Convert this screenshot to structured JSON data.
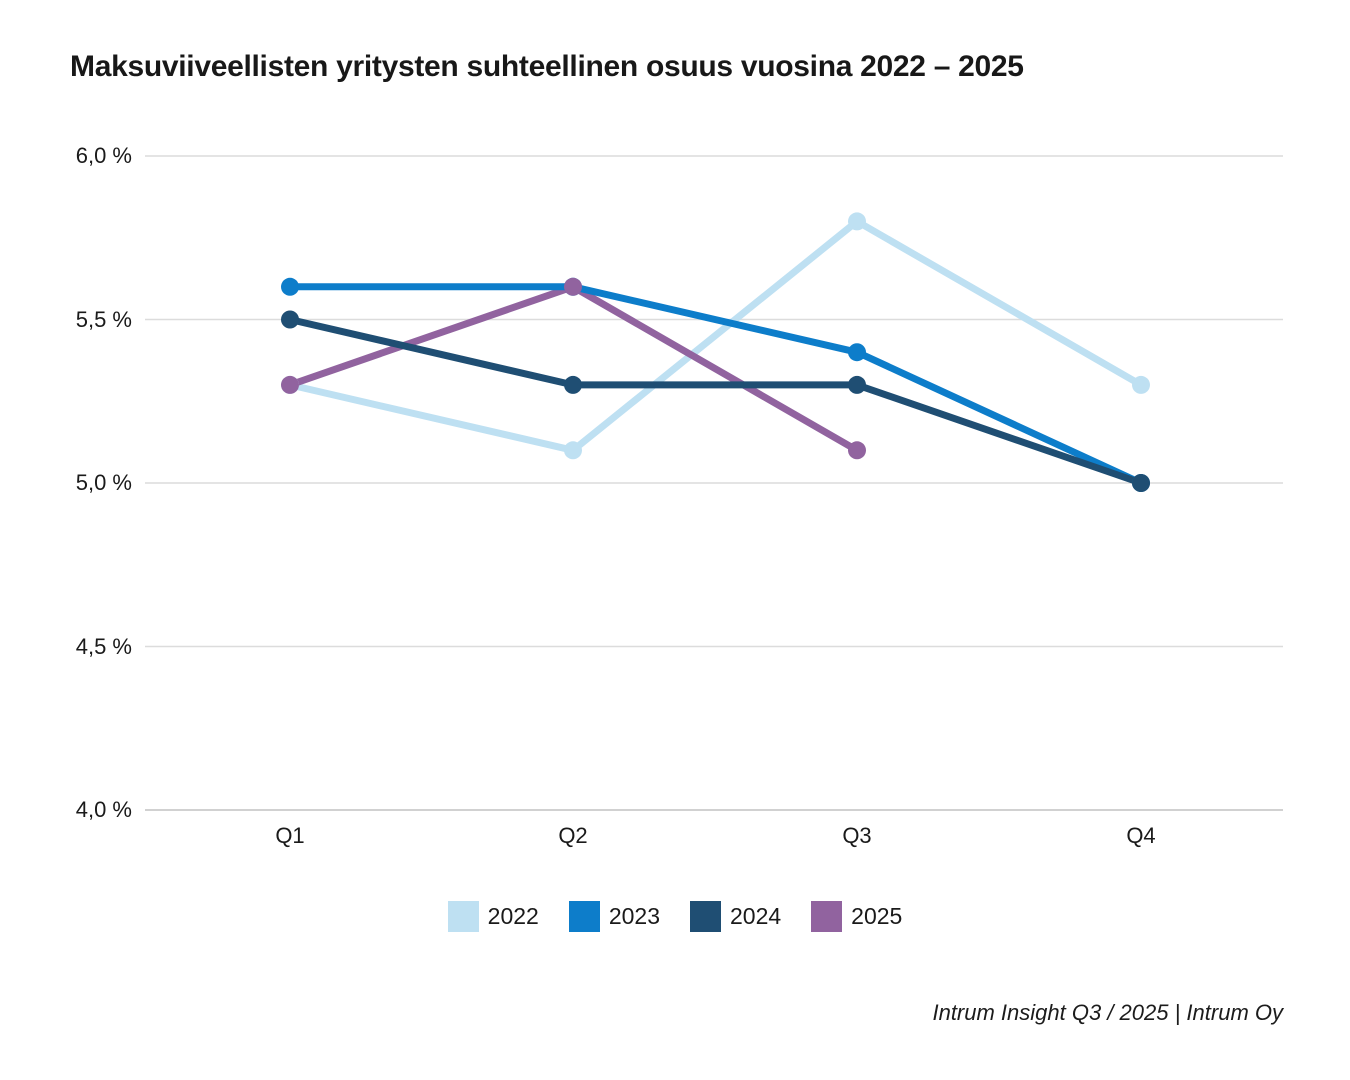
{
  "header": {
    "title": "Maksuviiveellisten yritysten suhteellinen osuus vuosina 2022 – 2025"
  },
  "chart_data": {
    "type": "line",
    "title": "Maksuviiveellisten yritysten suhteellinen osuus vuosina 2022 – 2025",
    "categories": [
      "Q1",
      "Q2",
      "Q3",
      "Q4"
    ],
    "series": [
      {
        "name": "2022",
        "color": "#BEE0F2",
        "values": [
          5.3,
          5.1,
          5.8,
          5.3
        ]
      },
      {
        "name": "2023",
        "color": "#0D7DCA",
        "values": [
          5.6,
          5.6,
          5.4,
          5.0
        ]
      },
      {
        "name": "2024",
        "color": "#1F4E73",
        "values": [
          5.5,
          5.3,
          5.3,
          5.0
        ]
      },
      {
        "name": "2025",
        "color": "#91639F",
        "values": [
          5.3,
          5.6,
          5.1,
          null
        ]
      }
    ],
    "xlabel": "",
    "ylabel": "",
    "ylim": [
      4.0,
      6.0
    ],
    "yticks": [
      6.0,
      5.5,
      5.0,
      4.5,
      4.0
    ],
    "ytick_labels": [
      "6,0 %",
      "5,5 %",
      "5,0 %",
      "4,5 %",
      "4,0 %"
    ],
    "grid": "horizontal",
    "legend_position": "bottom",
    "gridline_color": "#DCDCDC",
    "axisline_color": "#C2C2C2"
  },
  "footer": {
    "text": "Intrum Insight Q3 / 2025 | Intrum Oy"
  }
}
